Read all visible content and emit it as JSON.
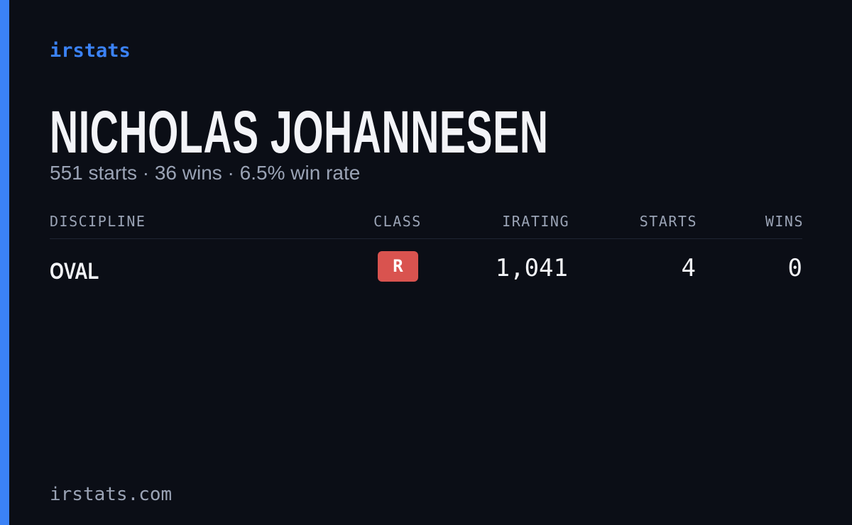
{
  "brand": "irstats",
  "driver": {
    "name": "NICHOLAS JOHANNESEN",
    "summary": "551 starts · 36 wins · 6.5% win rate"
  },
  "table": {
    "headers": [
      "DISCIPLINE",
      "CLASS",
      "IRATING",
      "STARTS",
      "WINS"
    ],
    "rows": [
      [
        "OVAL",
        "R",
        "1,041",
        "4",
        "0"
      ]
    ]
  },
  "footer": "irstats.com"
}
